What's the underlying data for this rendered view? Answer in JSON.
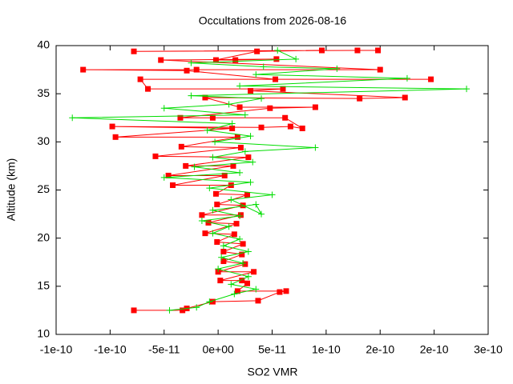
{
  "chart_data": {
    "type": "line",
    "title": "Occultations from 2026-08-16",
    "x_label": "SO2 VMR",
    "y_label": "Altitude (km)",
    "xlim": [
      -1.5e-10,
      2.5e-10
    ],
    "xticks": [
      {
        "value": -1.5e-10,
        "label": "-1e-10"
      },
      {
        "value": -1e-10,
        "label": "-1e-10"
      },
      {
        "value": -5e-11,
        "label": "-5e-11"
      },
      {
        "value": 0,
        "label": "0e+00"
      },
      {
        "value": 5e-11,
        "label": "5e-11"
      },
      {
        "value": 1e-10,
        "label": "1e-10"
      },
      {
        "value": 1.5e-10,
        "label": "2e-10"
      },
      {
        "value": 2e-10,
        "label": "2e-10"
      },
      {
        "value": 2.5e-10,
        "label": "3e-10"
      }
    ],
    "ylim": [
      10,
      40
    ],
    "yticks": [
      10,
      15,
      20,
      25,
      30,
      35,
      40
    ],
    "series": [
      {
        "color": "#ff0000",
        "marker": "square",
        "x": [
          -7.8e-11,
          -3.3e-11,
          -2.9e-11,
          -5e-12,
          3.7e-11,
          5.7e-11,
          6.3e-11,
          1.8e-11,
          2.7e-11,
          2.2e-11,
          2e-12,
          3.3e-11,
          0,
          2.5e-11,
          5e-12,
          2.2e-11,
          5e-12,
          2.3e-11,
          -1e-12,
          1.5e-11,
          -1.2e-11,
          1.7e-11,
          -9e-12,
          2.1e-11,
          -1.5e-11,
          2.3e-11,
          -1e-12,
          2.7e-11,
          -2e-12,
          1.2e-11,
          -4.2e-11,
          6e-12,
          -4.6e-11,
          1.4e-11,
          -3e-11,
          2.8e-11,
          -5.8e-11,
          2.1e-11,
          -3.4e-11,
          1.8e-11,
          -9.5e-11,
          1.3e-11,
          -9.8e-11,
          4e-11,
          6.7e-11,
          7.8e-11,
          6.2e-11,
          -5e-12,
          -3.5e-11,
          4.8e-11,
          9e-11,
          2e-11,
          -1.2e-11,
          1.31e-10,
          1.73e-10,
          3e-11,
          6e-11,
          -6.5e-11,
          -7.2e-11,
          1.97e-10,
          5.3e-11,
          -2.9e-11,
          -1.25e-10,
          -2e-11,
          1.5e-10,
          -5.3e-11,
          5.4e-11,
          1.6e-11,
          -2e-12,
          3.6e-11,
          9.6e-11,
          -7.8e-11,
          1.29e-10,
          1.48e-10
        ],
        "y": [
          12.5,
          12.5,
          12.7,
          13.4,
          13.5,
          14.4,
          14.5,
          14.5,
          15.3,
          15.6,
          15.6,
          16.5,
          16.5,
          17.3,
          17.6,
          18.3,
          18.6,
          19.4,
          19.6,
          20.4,
          20.5,
          21.5,
          21.6,
          22.4,
          22.4,
          23.4,
          23.5,
          24.5,
          24.6,
          25.5,
          25.5,
          26.5,
          26.5,
          27.5,
          27.5,
          28.4,
          28.5,
          29.4,
          29.5,
          30.5,
          30.5,
          31.4,
          31.6,
          31.5,
          31.6,
          31.4,
          32.5,
          32.5,
          32.5,
          33.5,
          33.6,
          33.6,
          34.6,
          34.5,
          34.6,
          35.3,
          35.5,
          35.5,
          36.5,
          36.5,
          36.5,
          37.4,
          37.5,
          37.5,
          37.5,
          38.5,
          38.6,
          38.5,
          38.5,
          39.4,
          39.5,
          39.4,
          39.5,
          39.5
        ]
      },
      {
        "color": "#00dd00",
        "marker": "plus",
        "x": [
          -4.5e-11,
          -2e-11,
          -8e-12,
          1.5e-11,
          3.5e-11,
          1.2e-11,
          2.8e-11,
          0,
          2.3e-11,
          3e-12,
          2.8e-11,
          5e-12,
          2e-11,
          -5e-12,
          1e-11,
          -1.5e-11,
          2e-11,
          -5e-12,
          3.5e-11,
          4e-11,
          1.2e-11,
          5e-11,
          -8e-12,
          3e-11,
          -5e-11,
          2e-11,
          -2.2e-11,
          3.2e-11,
          -5e-12,
          2.5e-11,
          9e-11,
          -3e-12,
          3e-11,
          -1e-11,
          1.3e-11,
          -1.35e-10,
          2.5e-11,
          -5e-11,
          1e-11,
          4e-11,
          -2.5e-11,
          2.3e-10,
          2e-11,
          1.75e-10,
          3.5e-11,
          1.1e-10,
          4.2e-11,
          -2.5e-11,
          7.2e-11,
          5.5e-11
        ],
        "y": [
          12.5,
          12.8,
          13.4,
          14.2,
          14.7,
          15.2,
          16.0,
          16.8,
          17.4,
          18.0,
          18.6,
          19.2,
          19.9,
          20.5,
          21.2,
          21.8,
          22.3,
          22.9,
          23.5,
          22.5,
          24.0,
          24.5,
          25.2,
          25.8,
          26.3,
          26.8,
          27.4,
          27.9,
          28.4,
          29.0,
          29.4,
          30.0,
          30.6,
          31.2,
          31.9,
          32.5,
          32.8,
          33.5,
          33.9,
          34.5,
          34.8,
          35.5,
          35.8,
          36.6,
          37.0,
          37.6,
          37.8,
          38.2,
          38.6,
          39.5
        ]
      }
    ]
  }
}
